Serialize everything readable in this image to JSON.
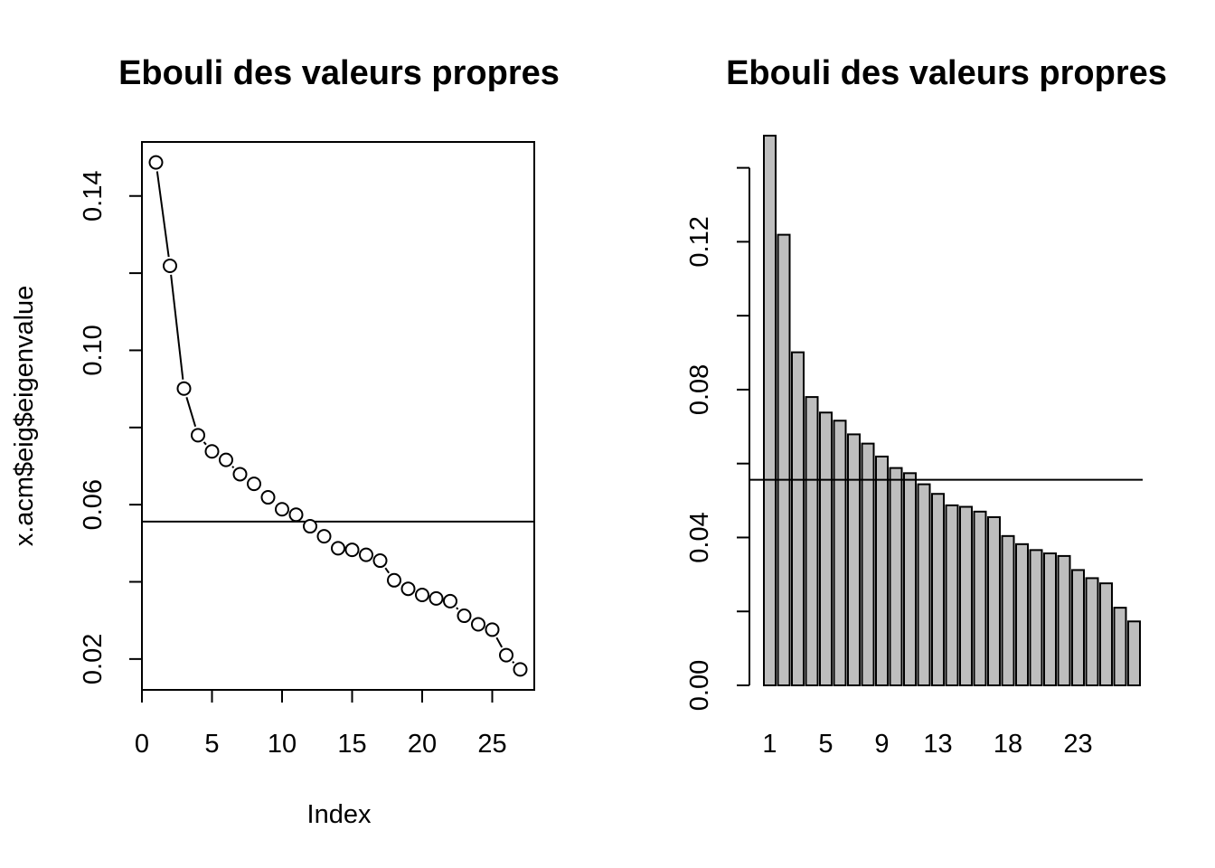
{
  "chart_data": [
    {
      "type": "line",
      "title": "Ebouli des valeurs propres",
      "xlabel": "Index",
      "ylabel": "x.acm$eig$eigenvalue",
      "xlim": [
        0,
        28
      ],
      "ylim": [
        0.012,
        0.154
      ],
      "x_ticks": [
        0,
        5,
        10,
        15,
        20,
        25
      ],
      "x_tick_labels": [
        "0",
        "5",
        "10",
        "15",
        "20",
        "25"
      ],
      "y_ticks": [
        0.02,
        0.04,
        0.06,
        0.08,
        0.1,
        0.12,
        0.14
      ],
      "y_tick_labels": [
        "0.02",
        "",
        "0.06",
        "",
        "0.10",
        "",
        "0.14"
      ],
      "x": [
        1,
        2,
        3,
        4,
        5,
        6,
        7,
        8,
        9,
        10,
        11,
        12,
        13,
        14,
        15,
        16,
        17,
        18,
        19,
        20,
        21,
        22,
        23,
        24,
        25,
        26,
        27
      ],
      "values": [
        0.1487,
        0.1219,
        0.0901,
        0.078,
        0.0738,
        0.0716,
        0.0679,
        0.0654,
        0.0619,
        0.0588,
        0.0574,
        0.0544,
        0.0518,
        0.0487,
        0.0483,
        0.047,
        0.0455,
        0.0404,
        0.0382,
        0.0366,
        0.0357,
        0.035,
        0.0312,
        0.029,
        0.0276,
        0.021,
        0.0173
      ],
      "hline": 0.0556,
      "grid": false
    },
    {
      "type": "bar",
      "title": "Ebouli des valeurs propres",
      "xlabel": "",
      "ylabel": "",
      "ylim": [
        0,
        0.147
      ],
      "y_ticks": [
        0.0,
        0.02,
        0.04,
        0.06,
        0.08,
        0.1,
        0.12,
        0.14
      ],
      "y_tick_labels": [
        "0.00",
        "",
        "0.04",
        "",
        "0.08",
        "",
        "0.12",
        ""
      ],
      "categories": [
        "1",
        "2",
        "3",
        "4",
        "5",
        "6",
        "7",
        "8",
        "9",
        "10",
        "11",
        "12",
        "13",
        "14",
        "15",
        "16",
        "17",
        "18",
        "19",
        "20",
        "21",
        "22",
        "23",
        "24",
        "25",
        "26",
        "27"
      ],
      "category_labels_shown": [
        "1",
        "5",
        "9",
        "13",
        "18",
        "23"
      ],
      "values": [
        0.1487,
        0.1219,
        0.0901,
        0.078,
        0.0738,
        0.0716,
        0.0679,
        0.0654,
        0.0619,
        0.0588,
        0.0574,
        0.0544,
        0.0518,
        0.0487,
        0.0483,
        0.047,
        0.0455,
        0.0404,
        0.0382,
        0.0366,
        0.0357,
        0.035,
        0.0312,
        0.029,
        0.0276,
        0.021,
        0.0173
      ],
      "bar_color": "#bebebe",
      "hline": 0.0556,
      "grid": false
    }
  ]
}
